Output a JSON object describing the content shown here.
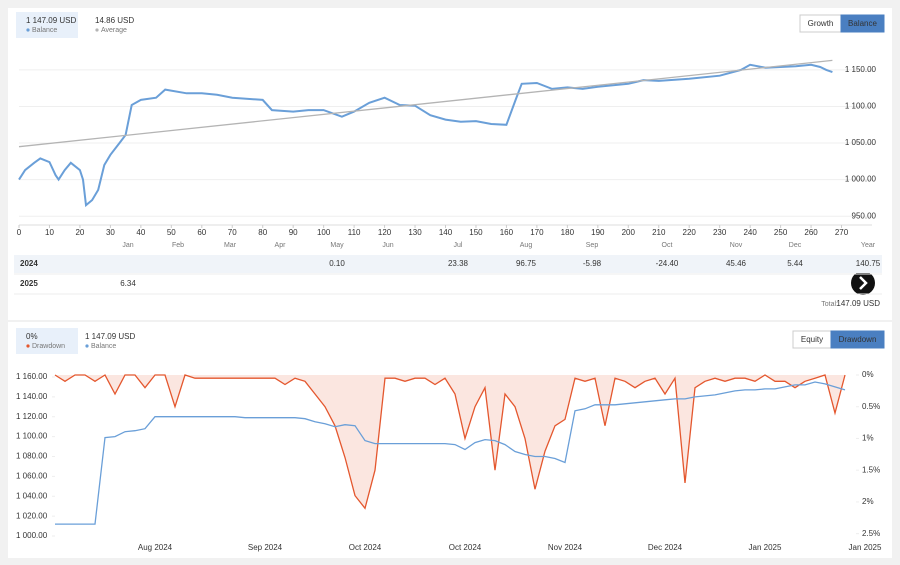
{
  "chart_data": [
    {
      "type": "line",
      "legend_values": [
        "1 147.09 USD",
        "14.86 USD"
      ],
      "buttons": [
        "Growth",
        "Balance"
      ],
      "xlim": [
        0,
        280
      ],
      "ylim": [
        938,
        1184
      ],
      "xticks": [
        0,
        10,
        20,
        30,
        40,
        50,
        60,
        70,
        80,
        90,
        100,
        110,
        120,
        130,
        140,
        150,
        160,
        170,
        180,
        190,
        200,
        210,
        220,
        230,
        240,
        250,
        260,
        270
      ],
      "yticks": [
        {
          "value": 950,
          "label": "950.00"
        },
        {
          "value": 1000,
          "label": "1 000.00"
        },
        {
          "value": 1050,
          "label": "1 050.00"
        },
        {
          "value": 1100,
          "label": "1 100.00"
        },
        {
          "value": 1150,
          "label": "1 150.00"
        }
      ],
      "grid": true,
      "series": [
        {
          "name": "Balance",
          "color": "#6a9fd8",
          "x": [
            0,
            2,
            5,
            7,
            10,
            12,
            13,
            15,
            17,
            20,
            21,
            22,
            24,
            26,
            28,
            30,
            33,
            35,
            37,
            40,
            45,
            48,
            55,
            60,
            65,
            70,
            80,
            83,
            90,
            95,
            100,
            106,
            110,
            115,
            120,
            125,
            130,
            135,
            140,
            145,
            150,
            155,
            160,
            163,
            165,
            170,
            175,
            180,
            185,
            190,
            200,
            205,
            210,
            220,
            230,
            237,
            240,
            245,
            255,
            260,
            263,
            265,
            267
          ],
          "values": [
            1000,
            1013,
            1023,
            1029,
            1024,
            1006,
            1000,
            1013,
            1023,
            1013,
            1000,
            965,
            972,
            986,
            1020,
            1034,
            1050,
            1061,
            1102,
            1109,
            1112,
            1123,
            1118,
            1118,
            1116,
            1112,
            1109,
            1095,
            1093,
            1095,
            1095,
            1086,
            1093,
            1105,
            1112,
            1102,
            1101,
            1088,
            1082,
            1079,
            1080,
            1076,
            1075,
            1109,
            1131,
            1132,
            1124,
            1126,
            1124,
            1127,
            1131,
            1136,
            1135,
            1138,
            1142,
            1150,
            1157,
            1153,
            1155,
            1157,
            1154,
            1150,
            1147
          ]
        },
        {
          "name": "Average",
          "color": "#b4b4b4",
          "x": [
            0,
            267
          ],
          "values": [
            1045,
            1163
          ]
        }
      ]
    },
    {
      "type": "line",
      "legend_values": [
        "0%",
        "1 147.09 USD"
      ],
      "buttons": [
        "Equity",
        "Drawdown"
      ],
      "ylim": [
        996,
        1162
      ],
      "y2lim": [
        2.6,
        0
      ],
      "yticks": [
        {
          "value": 1000,
          "label": "1 000.00"
        },
        {
          "value": 1020,
          "label": "1 020.00"
        },
        {
          "value": 1040,
          "label": "1 040.00"
        },
        {
          "value": 1060,
          "label": "1 060.00"
        },
        {
          "value": 1080,
          "label": "1 080.00"
        },
        {
          "value": 1100,
          "label": "1 100.00"
        },
        {
          "value": 1120,
          "label": "1 120.00"
        },
        {
          "value": 1140,
          "label": "1 140.00"
        },
        {
          "value": 1160,
          "label": "1 160.00"
        }
      ],
      "y2ticks": [
        {
          "value": 0,
          "label": "0%"
        },
        {
          "value": 0.5,
          "label": "0.5%"
        },
        {
          "value": 1,
          "label": "1%"
        },
        {
          "value": 1.5,
          "label": "1.5%"
        },
        {
          "value": 2,
          "label": "2%"
        },
        {
          "value": 2.5,
          "label": "2.5%"
        }
      ],
      "categories": [
        null,
        null,
        null,
        null,
        null,
        null,
        null,
        null,
        null,
        null,
        "Aug 2024",
        null,
        null,
        null,
        null,
        null,
        null,
        null,
        null,
        null,
        null,
        "Sep 2024",
        null,
        null,
        null,
        null,
        null,
        null,
        null,
        null,
        null,
        "Oct 2024",
        null,
        null,
        null,
        null,
        null,
        null,
        null,
        null,
        null,
        "Oct 2024",
        null,
        null,
        null,
        null,
        null,
        null,
        null,
        null,
        null,
        "Nov 2024",
        null,
        null,
        null,
        null,
        null,
        null,
        null,
        null,
        null,
        "Dec 2024",
        null,
        null,
        null,
        null,
        null,
        null,
        null,
        null,
        null,
        "Jan 2025",
        null,
        null,
        null,
        null,
        null,
        null,
        null,
        null,
        null,
        "Jan 2025"
      ],
      "series": [
        {
          "name": "Drawdown",
          "color": "#e4572e",
          "axis": "y2",
          "values": [
            0,
            0.1,
            0,
            0,
            0.1,
            0,
            0.3,
            0,
            0,
            0.2,
            0,
            0,
            0.5,
            0,
            0.05,
            0.05,
            0.05,
            0.05,
            0.05,
            0.05,
            0.05,
            0.05,
            0.05,
            0.15,
            0.05,
            0.1,
            0.3,
            0.5,
            0.8,
            1.3,
            1.9,
            2.1,
            1.5,
            0.05,
            0.05,
            0.1,
            0.05,
            0.05,
            0.15,
            0.05,
            0.3,
            1.0,
            0.5,
            0.2,
            1.5,
            0.3,
            0.5,
            1.0,
            1.8,
            1.2,
            0.8,
            0.7,
            0.05,
            0.1,
            0.05,
            0.8,
            0.05,
            0.1,
            0.2,
            0.1,
            0.05,
            0.3,
            0.05,
            1.7,
            0.2,
            0.1,
            0.05,
            0.1,
            0.05,
            0.05,
            0.1,
            0,
            0.1,
            0.1,
            0.2,
            0.1,
            0.05,
            0,
            0.6,
            0,
            null,
            null
          ]
        },
        {
          "name": "Balance",
          "color": "#6a9fd8",
          "values": [
            1012,
            1012,
            1012,
            1012,
            1012,
            1099,
            1100,
            1105,
            1106,
            1108,
            1120,
            1120,
            1120,
            1120,
            1120,
            1120,
            1120,
            1120,
            1120,
            1119,
            1119,
            1119,
            1119,
            1119,
            1119,
            1118,
            1115,
            1113,
            1110,
            1112,
            1111,
            1096,
            1093,
            1093,
            1093,
            1093,
            1093,
            1093,
            1093,
            1093,
            1092,
            1087,
            1094,
            1097,
            1096,
            1092,
            1085,
            1082,
            1080,
            1080,
            1078,
            1074,
            1126,
            1128,
            1132,
            1132,
            1132,
            1133,
            1134,
            1135,
            1136,
            1137,
            1138,
            1138,
            1140,
            1141,
            1142,
            1144,
            1146,
            1147,
            1147,
            1148,
            1148,
            1150,
            1152,
            1152,
            1155,
            1153,
            1150,
            1147,
            null,
            null
          ]
        }
      ]
    }
  ],
  "monthly_table": {
    "columns": [
      "Jan",
      "Feb",
      "Mar",
      "Apr",
      "May",
      "Jun",
      "Jul",
      "Aug",
      "Sep",
      "Oct",
      "Nov",
      "Dec",
      "Year"
    ],
    "rows": [
      {
        "year": "2024",
        "values": [
          null,
          null,
          null,
          null,
          "0.10",
          null,
          "23.38",
          "96.75",
          "-5.98",
          "-24.40",
          "45.46",
          "5.44",
          "140.75"
        ]
      },
      {
        "year": "2025",
        "values": [
          "6.34",
          null,
          null,
          null,
          null,
          null,
          null,
          null,
          null,
          null,
          null,
          null,
          null
        ]
      }
    ],
    "total_label": "Total:",
    "total": "147.09 USD"
  }
}
